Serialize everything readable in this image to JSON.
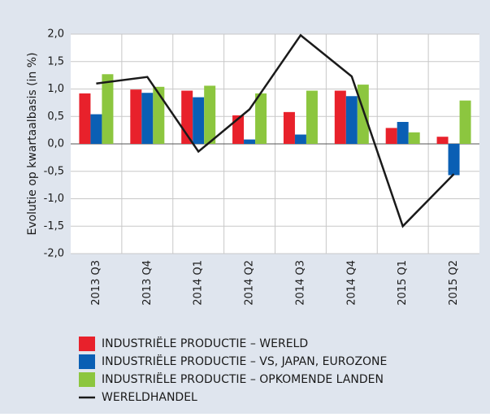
{
  "chart_data": {
    "type": "bar",
    "y_label": "Evolutie op kwartaalbasis (in %)",
    "categories": [
      "2013 Q3",
      "2013 Q4",
      "2014 Q1",
      "2014 Q2",
      "2014 Q3",
      "2014 Q4",
      "2015 Q1",
      "2015 Q2"
    ],
    "series": [
      {
        "name": "INDUSTRIËLE PRODUCTIE – WERELD",
        "type": "bar",
        "color": "#e8212b",
        "values": [
          0.92,
          0.99,
          0.97,
          0.52,
          0.58,
          0.97,
          0.29,
          0.13
        ]
      },
      {
        "name": "INDUSTRIËLE PRODUCTIE – VS, JAPAN, EUROZONE",
        "type": "bar",
        "color": "#0a5fb4",
        "values": [
          0.54,
          0.93,
          0.85,
          0.08,
          0.17,
          0.87,
          0.4,
          -0.57
        ]
      },
      {
        "name": "INDUSTRIËLE PRODUCTIE – OPKOMENDE LANDEN",
        "type": "bar",
        "color": "#8cc63f",
        "values": [
          1.27,
          1.04,
          1.06,
          0.92,
          0.97,
          1.08,
          0.21,
          0.79
        ]
      },
      {
        "name": "WERELDHANDEL",
        "type": "line",
        "color": "#1a1a1a",
        "values": [
          1.1,
          1.22,
          -0.14,
          0.63,
          1.98,
          1.23,
          -1.5,
          -0.55
        ]
      }
    ],
    "ylim": [
      -2,
      2
    ],
    "yticks": [
      {
        "value": -2,
        "label": "-2,0"
      },
      {
        "value": -1.5,
        "label": "-1,5"
      },
      {
        "value": -1,
        "label": "-1,0"
      },
      {
        "value": -0.5,
        "label": "-0,5"
      },
      {
        "value": 0,
        "label": "0,0"
      },
      {
        "value": 0.5,
        "label": "0,5"
      },
      {
        "value": 1,
        "label": "1,0"
      },
      {
        "value": 1.5,
        "label": "1,5"
      },
      {
        "value": 2,
        "label": "2,0"
      }
    ],
    "grid": true,
    "legend": "bottom"
  }
}
